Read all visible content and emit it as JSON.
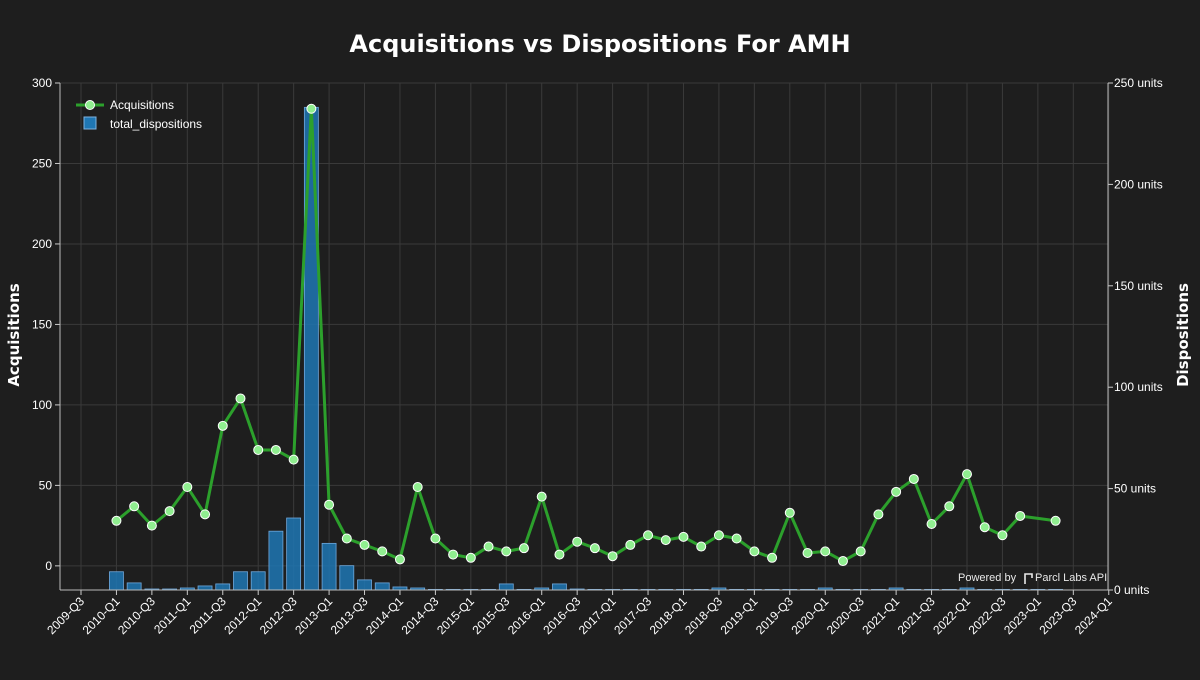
{
  "chart_data": {
    "type": "bar+line",
    "title": "Acquisitions vs Dispositions For AMH",
    "ylabel_left": "Acquisitions",
    "ylabel_right": "Dispositions",
    "ylim_left": [
      -15,
      300
    ],
    "ylim_right": [
      0,
      250
    ],
    "yticks_left": [
      0,
      50,
      100,
      150,
      200,
      250,
      300
    ],
    "yticks_right": [
      0,
      50,
      100,
      150,
      200,
      250
    ],
    "yticks_right_labels": [
      "0 units",
      "50 units",
      "100 units",
      "150 units",
      "200 units",
      "250 units"
    ],
    "x_tick_labels": [
      "2009-Q3",
      "2010-Q1",
      "2010-Q3",
      "2011-Q1",
      "2011-Q3",
      "2012-Q1",
      "2012-Q3",
      "2013-Q1",
      "2013-Q3",
      "2014-Q1",
      "2014-Q3",
      "2015-Q1",
      "2015-Q3",
      "2016-Q1",
      "2016-Q3",
      "2017-Q1",
      "2017-Q3",
      "2018-Q1",
      "2018-Q3",
      "2019-Q1",
      "2019-Q3",
      "2020-Q1",
      "2020-Q3",
      "2021-Q1",
      "2021-Q3",
      "2022-Q1",
      "2022-Q3",
      "2023-Q1",
      "2023-Q3",
      "2024-Q1"
    ],
    "grid": true,
    "legend_position": "top-left",
    "legend": [
      "Acquisitions",
      "total_dispositions"
    ],
    "credit": "Powered by",
    "credit_brand": "Parcl Labs API",
    "colors": {
      "acquisitions": "#2ca02c",
      "dispositions": "#1f77b4",
      "marker_fill": "#90ee90"
    },
    "acquisitions": {
      "name": "Acquisitions",
      "x": [
        "2010-Q1",
        "2010-Q2",
        "2010-Q3",
        "2010-Q4",
        "2011-Q1",
        "2011-Q2",
        "2011-Q3",
        "2011-Q4",
        "2012-Q1",
        "2012-Q2",
        "2012-Q3",
        "2012-Q4",
        "2013-Q1",
        "2013-Q2",
        "2013-Q3",
        "2013-Q4",
        "2014-Q1",
        "2014-Q2",
        "2014-Q3",
        "2014-Q4",
        "2015-Q1",
        "2015-Q2",
        "2015-Q3",
        "2015-Q4",
        "2016-Q1",
        "2016-Q2",
        "2016-Q3",
        "2016-Q4",
        "2017-Q1",
        "2017-Q2",
        "2017-Q3",
        "2017-Q4",
        "2018-Q1",
        "2018-Q2",
        "2018-Q3",
        "2018-Q4",
        "2019-Q1",
        "2019-Q2",
        "2019-Q3",
        "2019-Q4",
        "2020-Q1",
        "2020-Q2",
        "2020-Q3",
        "2020-Q4",
        "2021-Q1",
        "2021-Q2",
        "2021-Q3",
        "2021-Q4",
        "2022-Q1",
        "2022-Q2",
        "2022-Q3",
        "2022-Q4",
        "2023-Q2"
      ],
      "values": [
        28,
        37,
        25,
        34,
        49,
        32,
        87,
        104,
        72,
        72,
        66,
        284,
        38,
        17,
        13,
        9,
        4,
        49,
        17,
        7,
        5,
        12,
        9,
        11,
        43,
        7,
        15,
        11,
        6,
        13,
        19,
        16,
        18,
        12,
        19,
        17,
        9,
        5,
        33,
        8,
        9,
        3,
        9,
        32,
        46,
        54,
        26,
        37,
        57,
        24,
        19,
        31,
        28
      ]
    },
    "dispositions": {
      "name": "total_dispositions",
      "x": [
        "2010-Q1",
        "2010-Q2",
        "2010-Q3",
        "2010-Q4",
        "2011-Q1",
        "2011-Q2",
        "2011-Q3",
        "2011-Q4",
        "2012-Q1",
        "2012-Q2",
        "2012-Q3",
        "2012-Q4",
        "2013-Q1",
        "2013-Q2",
        "2013-Q3",
        "2013-Q4",
        "2014-Q1",
        "2014-Q2",
        "2014-Q3",
        "2014-Q4",
        "2015-Q1",
        "2015-Q2",
        "2015-Q3",
        "2015-Q4",
        "2016-Q1",
        "2016-Q2",
        "2016-Q3",
        "2016-Q4",
        "2017-Q1",
        "2017-Q2",
        "2017-Q3",
        "2017-Q4",
        "2018-Q1",
        "2018-Q2",
        "2018-Q3",
        "2018-Q4",
        "2019-Q1",
        "2019-Q2",
        "2019-Q3",
        "2019-Q4",
        "2020-Q1",
        "2020-Q2",
        "2020-Q3",
        "2020-Q4",
        "2021-Q1",
        "2021-Q2",
        "2021-Q3",
        "2021-Q4",
        "2022-Q1",
        "2022-Q2",
        "2022-Q3",
        "2022-Q4",
        "2023-Q1",
        "2023-Q2"
      ],
      "values": [
        9,
        3.5,
        0.5,
        0.5,
        1,
        2,
        3,
        9,
        9,
        29,
        35.5,
        238,
        23,
        12,
        5,
        3.5,
        1.5,
        1,
        0.3,
        0.3,
        0.3,
        0.3,
        3,
        0.3,
        1,
        3,
        0.5,
        0.3,
        0.3,
        0.3,
        0.3,
        0.3,
        0.3,
        0.3,
        1,
        0.3,
        0.3,
        0.3,
        0.3,
        0.3,
        1,
        0.3,
        0.3,
        0.3,
        1,
        0.3,
        0.3,
        0.3,
        1,
        0.3,
        0.3,
        0.3,
        0.3,
        0.3
      ]
    }
  }
}
